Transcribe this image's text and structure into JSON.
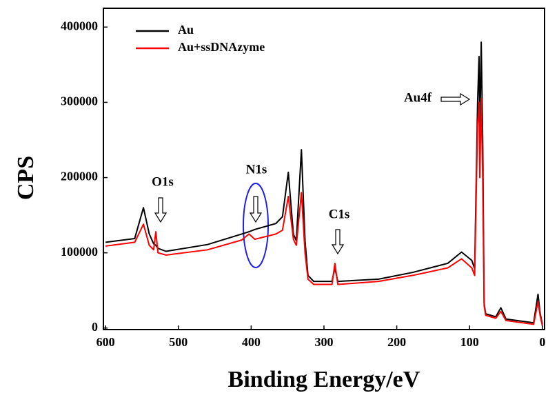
{
  "chart_data": {
    "type": "line",
    "xlabel": "Binding Energy/eV",
    "ylabel": "CPS",
    "x": [
      600,
      560,
      548,
      540,
      534,
      531,
      528,
      517,
      460,
      413,
      403,
      395,
      366,
      357,
      349,
      342,
      338,
      331,
      326,
      322,
      314,
      289,
      285,
      281,
      225,
      178,
      130,
      111,
      97,
      93,
      89,
      87,
      86,
      84,
      82,
      80,
      78,
      64,
      57,
      50,
      12,
      6,
      3,
      0
    ],
    "series": [
      {
        "name": "Au",
        "color": "#000000",
        "values": [
          114000,
          119000,
          160000,
          125000,
          112000,
          110000,
          106000,
          102000,
          111000,
          125000,
          128000,
          131000,
          139000,
          148000,
          207000,
          125000,
          116000,
          237000,
          116000,
          70000,
          62000,
          62000,
          80000,
          62000,
          65000,
          74000,
          86000,
          101000,
          90000,
          79000,
          299000,
          361000,
          253000,
          380000,
          253000,
          33000,
          19000,
          15000,
          27000,
          12000,
          7000,
          45000,
          19000,
          5000
        ]
      },
      {
        "name": "Au+ssDNAzyme",
        "color": "#ff0000",
        "values": [
          109000,
          114000,
          138000,
          110000,
          104000,
          128000,
          100000,
          97000,
          104000,
          117000,
          125000,
          118000,
          125000,
          130000,
          175000,
          118000,
          110000,
          180000,
          100000,
          65000,
          58000,
          58000,
          86000,
          58000,
          62000,
          70000,
          80000,
          92000,
          80000,
          70000,
          270000,
          300000,
          200000,
          305000,
          200000,
          30000,
          17000,
          13000,
          22000,
          10000,
          5000,
          35000,
          16000,
          3000
        ]
      }
    ],
    "xlim": [
      603,
      -3
    ],
    "ylim": [
      -2000,
      425000
    ],
    "xticks": [
      600,
      500,
      400,
      300,
      200,
      100,
      0
    ],
    "yticks": [
      0,
      100000,
      200000,
      300000,
      400000
    ],
    "annotations": [
      "O1s",
      "N1s",
      "C1s",
      "Au4f"
    ]
  }
}
